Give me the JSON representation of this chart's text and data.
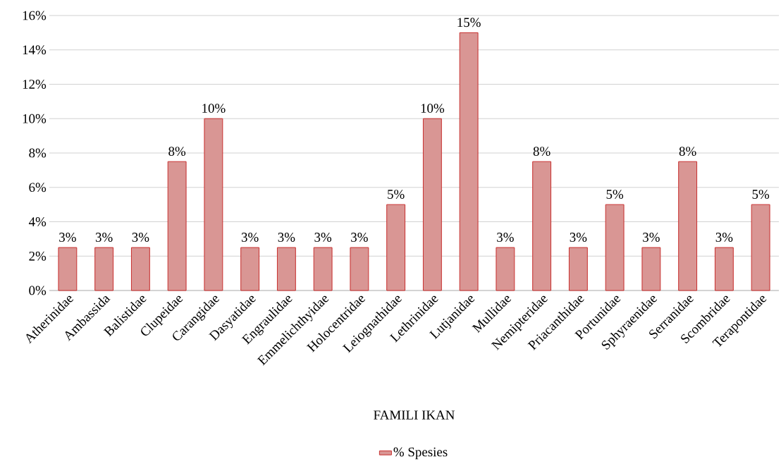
{
  "chart_data": {
    "type": "bar",
    "xlabel": "FAMILI IKAN",
    "categories": [
      "Atherinidae",
      "Ambassida",
      "Balistidae",
      "Clupeidae",
      "Carangidae",
      "Dasyatidae",
      "Engraulidae",
      "Emmelichthyidae",
      "Holocentridae",
      "Leiognathidae",
      "Lethrinidae",
      "Lutjanidae",
      "Mullidae",
      "Nemipteridae",
      "Priacanthidae",
      "Portunidae",
      "Sphyraenidae",
      "Serranidae",
      "Scombridae",
      "Terapontidae"
    ],
    "series": [
      {
        "name": "% Spesies",
        "color": "#d99694",
        "values": [
          2.5,
          2.5,
          2.5,
          7.5,
          10,
          2.5,
          2.5,
          2.5,
          2.5,
          5,
          10,
          15,
          2.5,
          7.5,
          2.5,
          5,
          2.5,
          7.5,
          2.5,
          5
        ],
        "value_labels": [
          "3%",
          "3%",
          "3%",
          "8%",
          "10%",
          "3%",
          "3%",
          "3%",
          "3%",
          "5%",
          "10%",
          "15%",
          "3%",
          "8%",
          "3%",
          "5%",
          "3%",
          "8%",
          "3%",
          "5%"
        ]
      }
    ],
    "ylim": [
      0,
      16
    ],
    "yticks": [
      {
        "value": 0,
        "label": "0%"
      },
      {
        "value": 2,
        "label": "2%"
      },
      {
        "value": 4,
        "label": "4%"
      },
      {
        "value": 6,
        "label": "6%"
      },
      {
        "value": 8,
        "label": "8%"
      },
      {
        "value": 10,
        "label": "10%"
      },
      {
        "value": 12,
        "label": "12%"
      },
      {
        "value": 14,
        "label": "14%"
      },
      {
        "value": 16,
        "label": "16%"
      }
    ],
    "grid": "y",
    "legend": "bottom"
  }
}
